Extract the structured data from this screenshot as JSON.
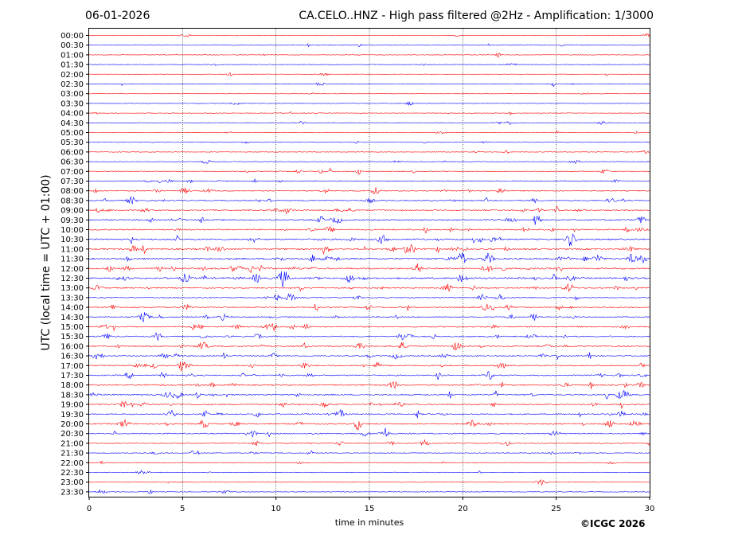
{
  "header": {
    "date": "06-01-2026",
    "station_title": "CA.CELO..HNZ - High pass filtered @2Hz - Amplification: 1/3000"
  },
  "footer": {
    "copyright": "©ICGC 2026"
  },
  "chart_data": {
    "type": "line",
    "title": "CA.CELO..HNZ - High pass filtered @2Hz - Amplification: 1/3000",
    "xlabel": "time in minutes",
    "ylabel": "UTC (local time = UTC + 01:00)",
    "xlim": [
      0,
      30
    ],
    "x_ticks": [
      "0",
      "5",
      "10",
      "15",
      "20",
      "25",
      "30"
    ],
    "x_grid": [
      5,
      10,
      15,
      20,
      25
    ],
    "grid": "vertical dotted",
    "trace_colors": [
      "#ff0000",
      "#0000ff"
    ],
    "rows": [
      {
        "label": "00:00",
        "activity": 0.08
      },
      {
        "label": "00:30",
        "activity": 0.12
      },
      {
        "label": "01:00",
        "activity": 0.1
      },
      {
        "label": "01:30",
        "activity": 0.08
      },
      {
        "label": "02:00",
        "activity": 0.1
      },
      {
        "label": "02:30",
        "activity": 0.12
      },
      {
        "label": "03:00",
        "activity": 0.06
      },
      {
        "label": "03:30",
        "activity": 0.06
      },
      {
        "label": "04:00",
        "activity": 0.12
      },
      {
        "label": "04:30",
        "activity": 0.12
      },
      {
        "label": "05:00",
        "activity": 0.14
      },
      {
        "label": "05:30",
        "activity": 0.12
      },
      {
        "label": "06:00",
        "activity": 0.1
      },
      {
        "label": "06:30",
        "activity": 0.12
      },
      {
        "label": "07:00",
        "activity": 0.25
      },
      {
        "label": "07:30",
        "activity": 0.35
      },
      {
        "label": "08:00",
        "activity": 0.4
      },
      {
        "label": "08:30",
        "activity": 0.45
      },
      {
        "label": "09:00",
        "activity": 0.5
      },
      {
        "label": "09:30",
        "activity": 0.55
      },
      {
        "label": "10:00",
        "activity": 0.6
      },
      {
        "label": "10:30",
        "activity": 0.7
      },
      {
        "label": "11:00",
        "activity": 0.75
      },
      {
        "label": "11:30",
        "activity": 0.8
      },
      {
        "label": "12:00",
        "activity": 0.8
      },
      {
        "label": "12:30",
        "activity": 0.75
      },
      {
        "label": "13:00",
        "activity": 0.55
      },
      {
        "label": "13:30",
        "activity": 0.4
      },
      {
        "label": "14:00",
        "activity": 0.45
      },
      {
        "label": "14:30",
        "activity": 0.5
      },
      {
        "label": "15:00",
        "activity": 0.5
      },
      {
        "label": "15:30",
        "activity": 0.5
      },
      {
        "label": "16:00",
        "activity": 0.55
      },
      {
        "label": "16:30",
        "activity": 0.5
      },
      {
        "label": "17:00",
        "activity": 0.55
      },
      {
        "label": "17:30",
        "activity": 0.55
      },
      {
        "label": "18:00",
        "activity": 0.55
      },
      {
        "label": "18:30",
        "activity": 0.6
      },
      {
        "label": "19:00",
        "activity": 0.6
      },
      {
        "label": "19:30",
        "activity": 0.55
      },
      {
        "label": "20:00",
        "activity": 0.55
      },
      {
        "label": "20:30",
        "activity": 0.45
      },
      {
        "label": "21:00",
        "activity": 0.3
      },
      {
        "label": "21:30",
        "activity": 0.25
      },
      {
        "label": "22:00",
        "activity": 0.15
      },
      {
        "label": "22:30",
        "activity": 0.15
      },
      {
        "label": "23:00",
        "activity": 0.08
      },
      {
        "label": "23:30",
        "activity": 0.08
      }
    ]
  }
}
